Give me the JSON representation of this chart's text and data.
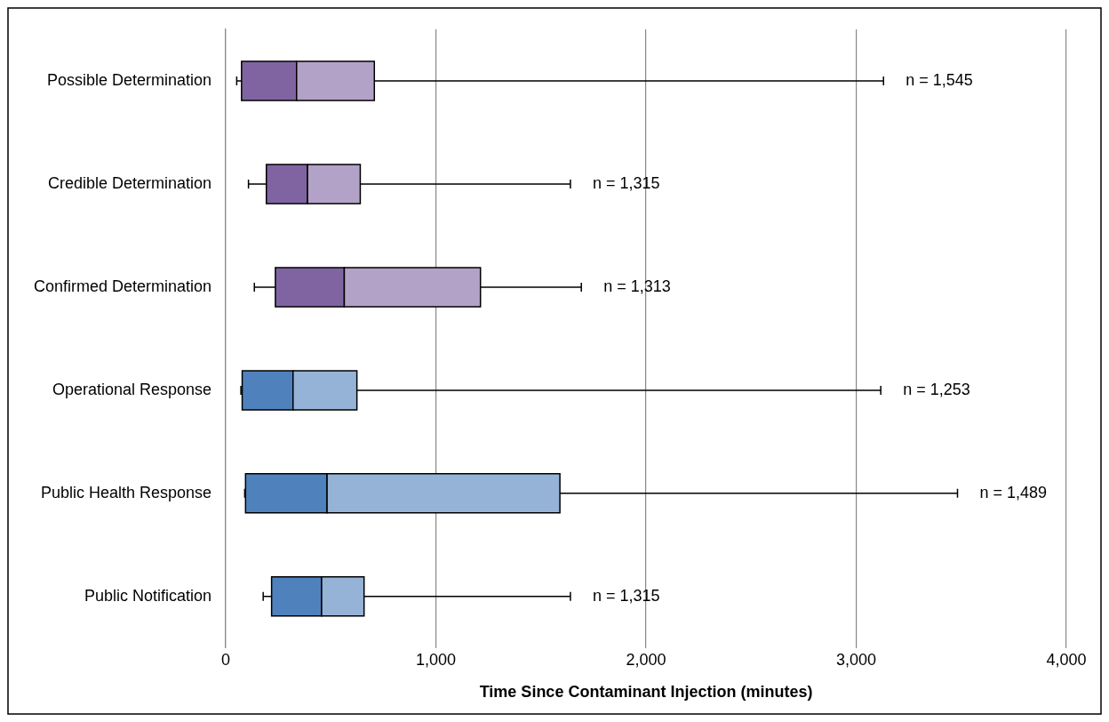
{
  "chart_data": {
    "type": "box",
    "orientation": "horizontal",
    "xlabel": "Time Since Contaminant Injection (minutes)",
    "categories": [
      "Possible Determination",
      "Credible Determination",
      "Confirmed Determination",
      "Operational Response",
      "Public Health Response",
      "Public Notification"
    ],
    "boxes": [
      {
        "low": 52,
        "q1": 75,
        "median": 337,
        "q3": 707,
        "high": 3130
      },
      {
        "low": 108,
        "q1": 193,
        "median": 389,
        "q3": 640,
        "high": 1640
      },
      {
        "low": 136,
        "q1": 236,
        "median": 564,
        "q3": 1212,
        "high": 1692
      },
      {
        "low": 72,
        "q1": 78,
        "median": 320,
        "q3": 624,
        "high": 3117
      },
      {
        "low": 90,
        "q1": 94,
        "median": 482,
        "q3": 1590,
        "high": 3482
      },
      {
        "low": 178,
        "q1": 218,
        "median": 456,
        "q3": 658,
        "high": 1640
      }
    ],
    "colors": [
      "#8064a2",
      "#8064a2",
      "#8064a2",
      "#4f81bd",
      "#4f81bd",
      "#4f81bd"
    ],
    "xlim": [
      0,
      4000
    ],
    "xticks": [
      {
        "value": 0,
        "label": "0"
      },
      {
        "value": 1000,
        "label": "1,000"
      },
      {
        "value": 2000,
        "label": "2,000"
      },
      {
        "value": 3000,
        "label": "3,000"
      },
      {
        "value": 4000,
        "label": "4,000"
      }
    ],
    "grid": "x",
    "annotations": [
      "n = 1,545",
      "n = 1,315",
      "n = 1,313",
      "n = 1,253",
      "n = 1,489",
      "n = 1,315"
    ]
  }
}
